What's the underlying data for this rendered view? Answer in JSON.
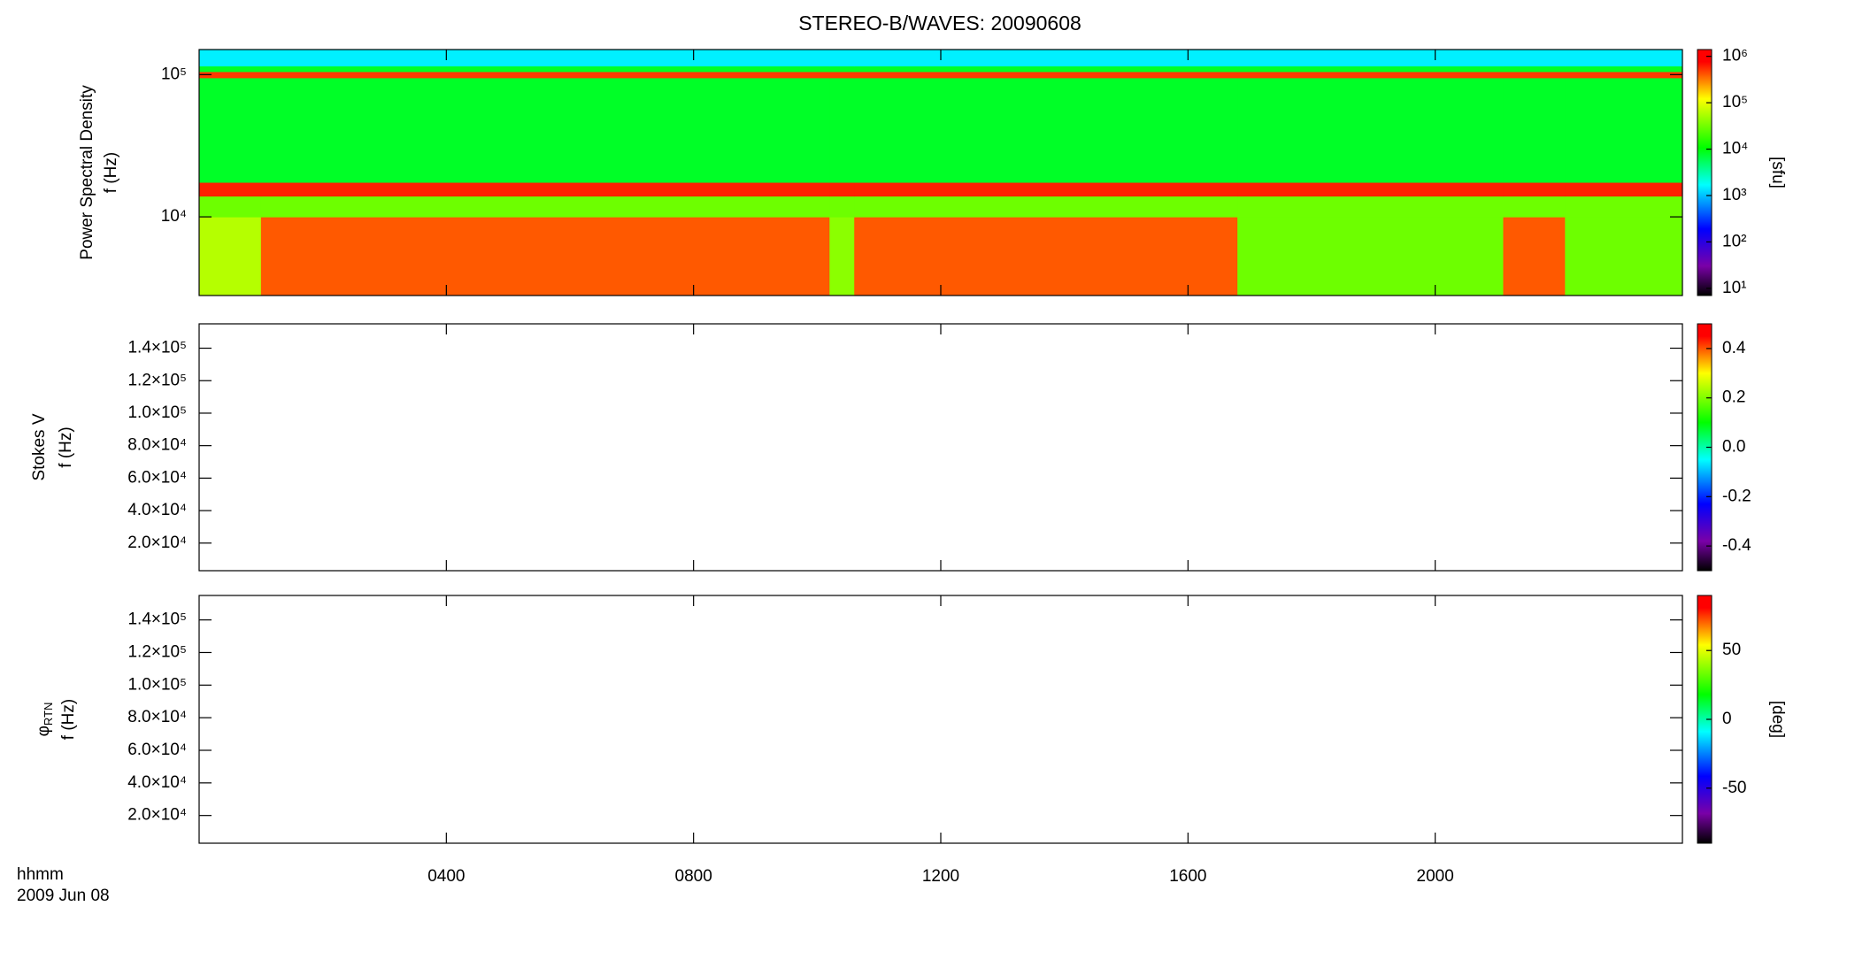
{
  "chart_data": [
    {
      "type": "heatmap",
      "title": "STEREO-B/WAVES: 20090608",
      "ylabel": [
        "Power Spectral Density",
        "f (Hz)"
      ],
      "xlim": [
        0,
        24
      ],
      "xticks": [
        4,
        8,
        12,
        16,
        20
      ],
      "ylim": [
        2800,
        150000
      ],
      "ylog": true,
      "yticks": [
        {
          "value": 10000,
          "label": "10⁴"
        },
        {
          "value": 100000,
          "label": "10⁵"
        }
      ],
      "x": [
        0,
        1,
        10.2,
        10.6,
        16.8,
        21.1,
        22.1,
        24
      ],
      "y": [
        2800,
        10000,
        14000,
        17500,
        95000,
        105000,
        115000,
        150000
      ],
      "values": [
        [
          60000,
          400000,
          40000,
          400000,
          30000,
          400000,
          30000
        ],
        [
          30000,
          30000,
          30000,
          30000,
          30000,
          30000,
          30000
        ],
        [
          600000,
          600000,
          600000,
          600000,
          600000,
          600000,
          600000
        ],
        [
          8000,
          8000,
          8000,
          8000,
          8000,
          8000,
          8000
        ],
        [
          500000,
          500000,
          500000,
          500000,
          500000,
          500000,
          500000
        ],
        [
          8000,
          8000,
          8000,
          8000,
          8000,
          8000,
          8000
        ],
        [
          1500,
          1500,
          1500,
          1500,
          1500,
          1500,
          1500
        ]
      ],
      "colormap": "rainbow",
      "clim": [
        7,
        1400000
      ],
      "clog": true,
      "cticks": [
        {
          "value": 10,
          "label": "10¹"
        },
        {
          "value": 100,
          "label": "10²"
        },
        {
          "value": 1000,
          "label": "10³"
        },
        {
          "value": 10000,
          "label": "10⁴"
        },
        {
          "value": 100000,
          "label": "10⁵"
        },
        {
          "value": 1000000,
          "label": "10⁶"
        }
      ],
      "colorbar_label": "[sfu]"
    },
    {
      "type": "heatmap",
      "ylabel": [
        "Stokes V",
        "f (Hz)"
      ],
      "xlim": [
        0,
        24
      ],
      "xticks": [
        4,
        8,
        12,
        16,
        20
      ],
      "ylim": [
        3000,
        155000
      ],
      "ylog": false,
      "yticks": [
        {
          "value": 20000,
          "label": "2.0×10⁴"
        },
        {
          "value": 40000,
          "label": "4.0×10⁴"
        },
        {
          "value": 60000,
          "label": "6.0×10⁴"
        },
        {
          "value": 80000,
          "label": "8.0×10⁴"
        },
        {
          "value": 100000,
          "label": "1.0×10⁵"
        },
        {
          "value": 120000,
          "label": "1.2×10⁵"
        },
        {
          "value": 140000,
          "label": "1.4×10⁵"
        }
      ],
      "colormap": "rainbow",
      "clim": [
        -0.5,
        0.5
      ],
      "clog": false,
      "cticks": [
        -0.4,
        -0.2,
        {
          "value": 0,
          "label": "0.0"
        },
        0.2,
        0.4
      ]
    },
    {
      "type": "heatmap",
      "ylabel": [
        "φ",
        "f (Hz)"
      ],
      "ylabel_sub": "RTN",
      "xlim": [
        0,
        24
      ],
      "xticks": [
        {
          "value": 4,
          "label": "0400"
        },
        {
          "value": 8,
          "label": "0800"
        },
        {
          "value": 12,
          "label": "1200"
        },
        {
          "value": 16,
          "label": "1600"
        },
        {
          "value": 20,
          "label": "2000"
        }
      ],
      "xlabel": "hhmm",
      "date_label": "2009 Jun 08",
      "ylim": [
        3000,
        155000
      ],
      "ylog": false,
      "yticks": [
        {
          "value": 20000,
          "label": "2.0×10⁴"
        },
        {
          "value": 40000,
          "label": "4.0×10⁴"
        },
        {
          "value": 60000,
          "label": "6.0×10⁴"
        },
        {
          "value": 80000,
          "label": "8.0×10⁴"
        },
        {
          "value": 100000,
          "label": "1.0×10⁵"
        },
        {
          "value": 120000,
          "label": "1.2×10⁵"
        },
        {
          "value": 140000,
          "label": "1.4×10⁵"
        }
      ],
      "colormap": "rainbow",
      "clim": [
        -90,
        90
      ],
      "clog": false,
      "cticks": [
        -50,
        0,
        50
      ],
      "colorbar_label": "[deg]"
    }
  ]
}
